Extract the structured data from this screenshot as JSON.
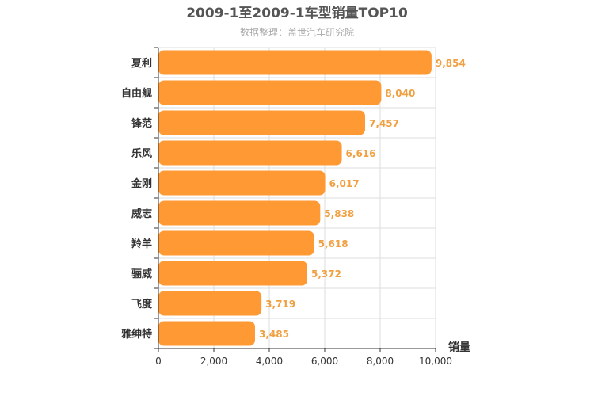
{
  "chart_data": {
    "type": "bar",
    "orientation": "horizontal",
    "title": "2009-1至2009-1车型销量TOP10",
    "subtitle": "数据整理：盖世汽车研究院",
    "categories": [
      "夏利",
      "自由舰",
      "锋范",
      "乐风",
      "金刚",
      "威志",
      "羚羊",
      "骊威",
      "飞度",
      "雅绅特"
    ],
    "values": [
      9854,
      8040,
      7457,
      6616,
      6017,
      5838,
      5618,
      5372,
      3719,
      3485
    ],
    "data_labels": [
      "9,854",
      "8,040",
      "7,457",
      "6,616",
      "6,017",
      "5,838",
      "5,618",
      "5,372",
      "3,719",
      "3,485"
    ],
    "xlabel": "销量",
    "xlim": [
      0,
      10000
    ],
    "x_ticks": [
      0,
      2000,
      4000,
      6000,
      8000,
      10000
    ],
    "x_tick_labels": [
      "0",
      "2,000",
      "4,000",
      "6,000",
      "8,000",
      "10,000"
    ],
    "grid": true,
    "bar_color": "#FF9933",
    "label_color": "#F0A040"
  }
}
